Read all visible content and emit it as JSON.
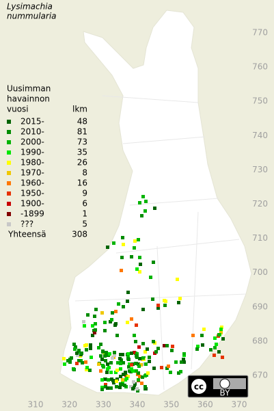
{
  "title_lines": [
    "Lysimachia",
    "nummularia"
  ],
  "legend": {
    "header_lines": [
      "Uusimman",
      "havainnon",
      "vuosi"
    ],
    "count_header": "lkm",
    "entries": [
      {
        "label": "2015-",
        "count": 48,
        "color": "#006400"
      },
      {
        "label": "2010-",
        "count": 81,
        "color": "#008c00"
      },
      {
        "label": "2000-",
        "count": 73,
        "color": "#00b400"
      },
      {
        "label": "1990-",
        "count": 35,
        "color": "#00e600"
      },
      {
        "label": "1980-",
        "count": 26,
        "color": "#ffff00"
      },
      {
        "label": "1970-",
        "count": 8,
        "color": "#f0c800"
      },
      {
        "label": "1960-",
        "count": 16,
        "color": "#ff7800"
      },
      {
        "label": "1950-",
        "count": 9,
        "color": "#e63200"
      },
      {
        "label": "1900-",
        "count": 6,
        "color": "#c80000"
      },
      {
        "label": "-1899",
        "count": 1,
        "color": "#820000"
      },
      {
        "label": "???",
        "count": 5,
        "color": "#c8c8c8"
      }
    ],
    "total_label": "Yhteensä",
    "total": 308
  },
  "axes": {
    "y_ticks": [
      770,
      760,
      750,
      740,
      730,
      720,
      710,
      700,
      690,
      680,
      670
    ],
    "x_ticks": [
      310,
      320,
      330,
      340,
      350,
      360,
      370
    ]
  },
  "license": {
    "icon": "cc",
    "label": "BY"
  }
}
